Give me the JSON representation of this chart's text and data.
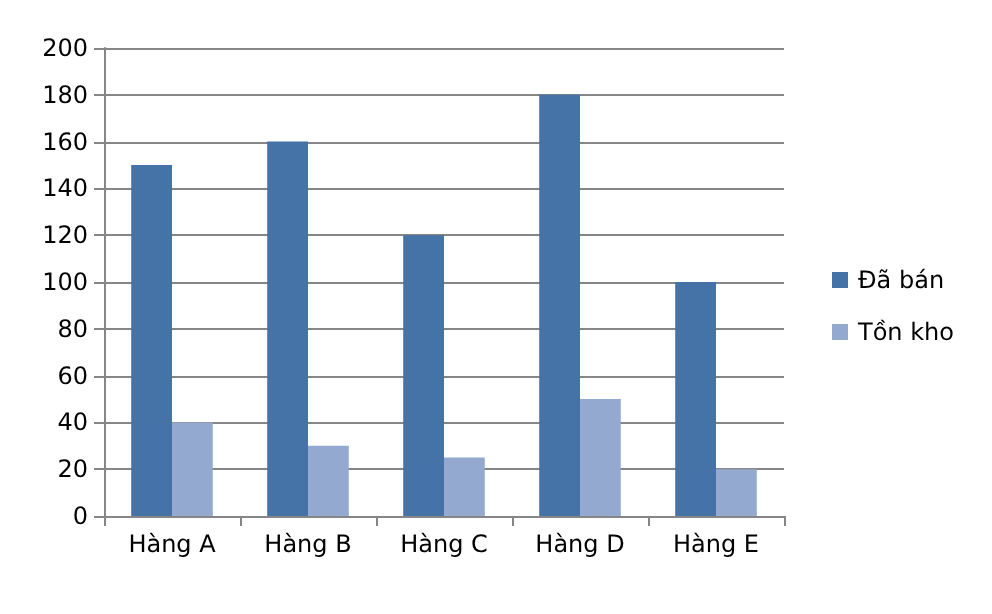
{
  "chart_data": {
    "type": "bar",
    "categories": [
      "Hàng A",
      "Hàng B",
      "Hàng C",
      "Hàng D",
      "Hàng E"
    ],
    "series": [
      {
        "name": "Đã bán",
        "color": "#4572a7",
        "values": [
          150,
          160,
          120,
          180,
          100
        ]
      },
      {
        "name": "Tồn kho",
        "color": "#93a9cf",
        "values": [
          40,
          30,
          25,
          50,
          20
        ]
      }
    ],
    "ylim": [
      0,
      200
    ],
    "yticks": [
      0,
      20,
      40,
      60,
      80,
      100,
      120,
      140,
      160,
      180,
      200
    ],
    "grid": "y",
    "legend": "right"
  }
}
